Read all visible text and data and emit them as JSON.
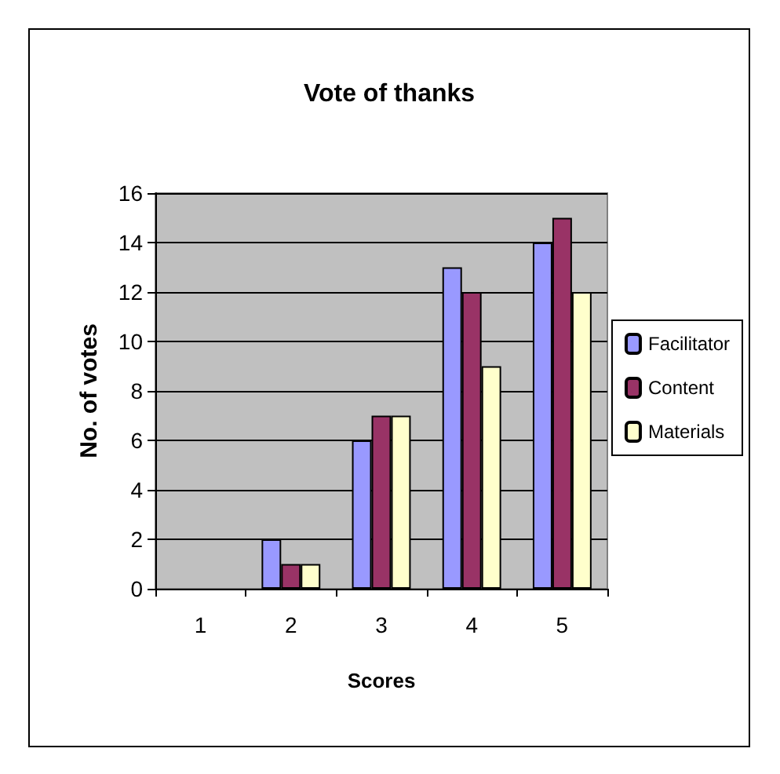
{
  "chart_data": {
    "type": "bar",
    "title": "Vote of thanks",
    "xlabel": "Scores",
    "ylabel": "No. of votes",
    "categories": [
      "1",
      "2",
      "3",
      "4",
      "5"
    ],
    "series": [
      {
        "name": "Facilitator",
        "color": "#9999ff",
        "values": [
          0,
          2,
          6,
          13,
          14
        ]
      },
      {
        "name": "Content",
        "color": "#993366",
        "values": [
          0,
          1,
          7,
          12,
          15
        ]
      },
      {
        "name": "Materials",
        "color": "#ffffcc",
        "values": [
          0,
          1,
          7,
          9,
          12
        ]
      }
    ],
    "ylim": [
      0,
      16
    ],
    "yticks": [
      0,
      2,
      4,
      6,
      8,
      10,
      12,
      14,
      16
    ],
    "grid": "y",
    "legend": "right"
  }
}
